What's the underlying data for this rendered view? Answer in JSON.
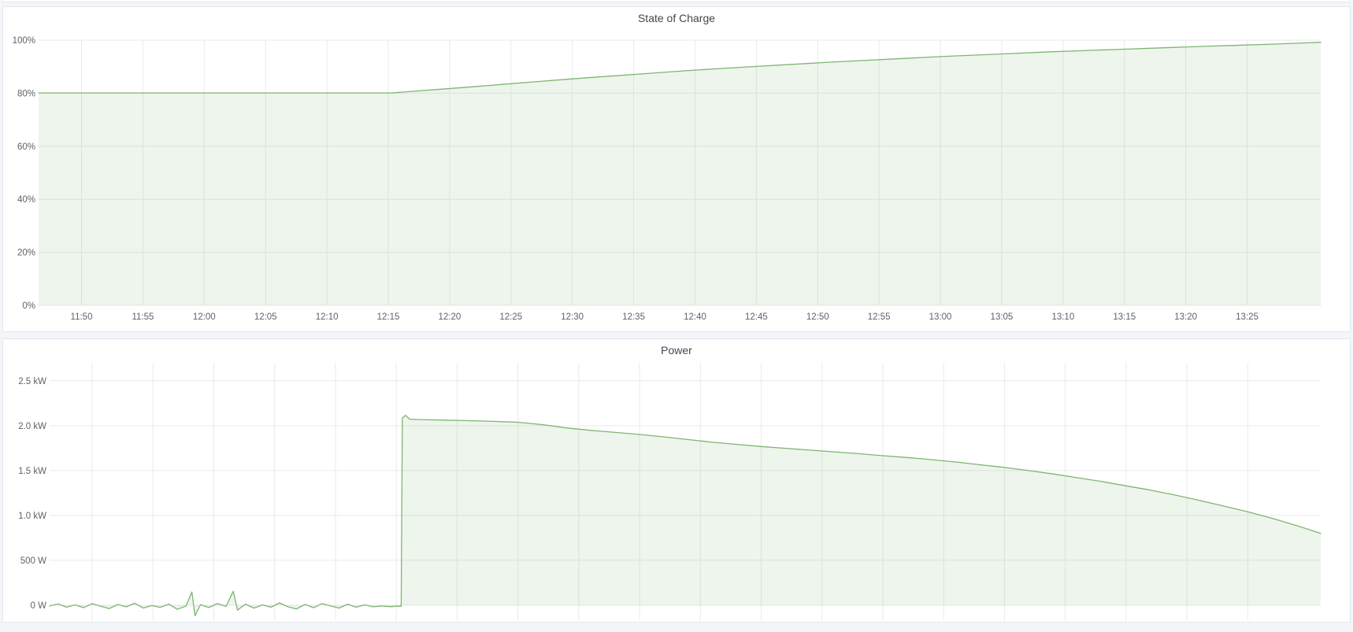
{
  "colors": {
    "page_bg": "#f4f5f9",
    "panel_bg": "#ffffff",
    "panel_border": "#e3e6ec",
    "grid": "#e9eaec",
    "tick_text": "#5f6269",
    "title_text": "#42464c",
    "series_line": "#7eb571",
    "series_fill": "rgba(126,181,113,0.13)"
  },
  "chart_data": [
    {
      "type": "area",
      "title": "State of Charge",
      "unit": "%",
      "legend": "none",
      "grid": true,
      "x_domain_minutes": [
        706.5,
        811
      ],
      "y_domain": [
        0,
        100
      ],
      "x_ticks": [
        {
          "t": 710,
          "label": "11:50"
        },
        {
          "t": 715,
          "label": "11:55"
        },
        {
          "t": 720,
          "label": "12:00"
        },
        {
          "t": 725,
          "label": "12:05"
        },
        {
          "t": 730,
          "label": "12:10"
        },
        {
          "t": 735,
          "label": "12:15"
        },
        {
          "t": 740,
          "label": "12:20"
        },
        {
          "t": 745,
          "label": "12:25"
        },
        {
          "t": 750,
          "label": "12:30"
        },
        {
          "t": 755,
          "label": "12:35"
        },
        {
          "t": 760,
          "label": "12:40"
        },
        {
          "t": 765,
          "label": "12:45"
        },
        {
          "t": 770,
          "label": "12:50"
        },
        {
          "t": 775,
          "label": "12:55"
        },
        {
          "t": 780,
          "label": "13:00"
        },
        {
          "t": 785,
          "label": "13:05"
        },
        {
          "t": 790,
          "label": "13:10"
        },
        {
          "t": 795,
          "label": "13:15"
        },
        {
          "t": 800,
          "label": "13:20"
        },
        {
          "t": 805,
          "label": "13:25"
        }
      ],
      "x_tick_labels_visible": true,
      "y_ticks": [
        {
          "v": 100,
          "label": "100%"
        },
        {
          "v": 80,
          "label": "80%"
        },
        {
          "v": 60,
          "label": "60%"
        },
        {
          "v": 40,
          "label": "40%"
        },
        {
          "v": 20,
          "label": "20%"
        },
        {
          "v": 0,
          "label": "0%"
        }
      ],
      "series": [
        {
          "name": "State of Charge",
          "points": [
            [
              706.5,
              80.1
            ],
            [
              712,
              80.1
            ],
            [
              718,
              80.1
            ],
            [
              724,
              80.1
            ],
            [
              730,
              80.1
            ],
            [
              735.3,
              80.1
            ],
            [
              737,
              80.7
            ],
            [
              739,
              81.4
            ],
            [
              741,
              82.1
            ],
            [
              744,
              83.2
            ],
            [
              747,
              84.3
            ],
            [
              750,
              85.4
            ],
            [
              753,
              86.4
            ],
            [
              756,
              87.4
            ],
            [
              759,
              88.4
            ],
            [
              762,
              89.3
            ],
            [
              765,
              90.1
            ],
            [
              768,
              90.9
            ],
            [
              771,
              91.7
            ],
            [
              774,
              92.4
            ],
            [
              777,
              93.1
            ],
            [
              780,
              93.8
            ],
            [
              783,
              94.4
            ],
            [
              786,
              95.0
            ],
            [
              789,
              95.6
            ],
            [
              792,
              96.1
            ],
            [
              795,
              96.6
            ],
            [
              798,
              97.1
            ],
            [
              801,
              97.6
            ],
            [
              804,
              98.0
            ],
            [
              807,
              98.5
            ],
            [
              809,
              98.8
            ],
            [
              811,
              99.2
            ]
          ]
        }
      ]
    },
    {
      "type": "area",
      "title": "Power",
      "unit": "W",
      "legend": "none",
      "grid": true,
      "x_domain_minutes": [
        706.5,
        811
      ],
      "y_domain": [
        -167,
        2700
      ],
      "x_gridline_times": [
        710,
        715,
        720,
        725,
        730,
        735,
        740,
        745,
        750,
        755,
        760,
        765,
        770,
        775,
        780,
        785,
        790,
        795,
        800,
        805
      ],
      "x_tick_labels_visible": false,
      "y_ticks": [
        {
          "v": 2500,
          "label": "2.5 kW"
        },
        {
          "v": 2000,
          "label": "2.0 kW"
        },
        {
          "v": 1500,
          "label": "1.5 kW"
        },
        {
          "v": 1000,
          "label": "1.0 kW"
        },
        {
          "v": 500,
          "label": "500 W"
        },
        {
          "v": 0,
          "label": "0 W"
        }
      ],
      "series": [
        {
          "name": "Power",
          "points": [
            [
              706.5,
              -8
            ],
            [
              707.2,
              14
            ],
            [
              707.9,
              -22
            ],
            [
              708.6,
              4
            ],
            [
              709.3,
              -28
            ],
            [
              710.0,
              18
            ],
            [
              710.7,
              -12
            ],
            [
              711.4,
              -38
            ],
            [
              712.1,
              8
            ],
            [
              712.8,
              -18
            ],
            [
              713.5,
              22
            ],
            [
              714.2,
              -32
            ],
            [
              714.9,
              -4
            ],
            [
              715.6,
              -24
            ],
            [
              716.3,
              12
            ],
            [
              717.0,
              -46
            ],
            [
              717.7,
              -10
            ],
            [
              718.2,
              148
            ],
            [
              718.45,
              -118
            ],
            [
              718.9,
              6
            ],
            [
              719.6,
              -26
            ],
            [
              720.3,
              18
            ],
            [
              721.0,
              -14
            ],
            [
              721.6,
              156
            ],
            [
              721.95,
              -55
            ],
            [
              722.6,
              12
            ],
            [
              723.3,
              -32
            ],
            [
              724.0,
              4
            ],
            [
              724.7,
              -22
            ],
            [
              725.4,
              26
            ],
            [
              726.1,
              -18
            ],
            [
              726.8,
              -42
            ],
            [
              727.5,
              8
            ],
            [
              728.2,
              -28
            ],
            [
              728.9,
              18
            ],
            [
              729.6,
              -8
            ],
            [
              730.3,
              -32
            ],
            [
              731.0,
              12
            ],
            [
              731.7,
              -22
            ],
            [
              732.4,
              4
            ],
            [
              733.1,
              -18
            ],
            [
              733.8,
              -8
            ],
            [
              734.5,
              -16
            ],
            [
              735.1,
              -10
            ],
            [
              735.4,
              -12
            ],
            [
              735.5,
              2085
            ],
            [
              735.75,
              2115
            ],
            [
              736.1,
              2072
            ],
            [
              737,
              2068
            ],
            [
              739,
              2062
            ],
            [
              741,
              2056
            ],
            [
              743,
              2048
            ],
            [
              745,
              2038
            ],
            [
              747,
              2012
            ],
            [
              749,
              1975
            ],
            [
              751,
              1948
            ],
            [
              753,
              1925
            ],
            [
              755,
              1902
            ],
            [
              757,
              1875
            ],
            [
              759,
              1845
            ],
            [
              761,
              1815
            ],
            [
              763,
              1792
            ],
            [
              765,
              1768
            ],
            [
              767,
              1748
            ],
            [
              769,
              1728
            ],
            [
              771,
              1708
            ],
            [
              773,
              1688
            ],
            [
              775,
              1665
            ],
            [
              777,
              1645
            ],
            [
              779,
              1622
            ],
            [
              781,
              1595
            ],
            [
              783,
              1565
            ],
            [
              785,
              1535
            ],
            [
              787,
              1500
            ],
            [
              789,
              1462
            ],
            [
              791,
              1420
            ],
            [
              793,
              1378
            ],
            [
              795,
              1330
            ],
            [
              797,
              1282
            ],
            [
              799,
              1228
            ],
            [
              801,
              1168
            ],
            [
              803,
              1105
            ],
            [
              805,
              1040
            ],
            [
              807,
              968
            ],
            [
              809,
              888
            ],
            [
              810,
              845
            ],
            [
              811,
              800
            ]
          ]
        }
      ]
    }
  ]
}
